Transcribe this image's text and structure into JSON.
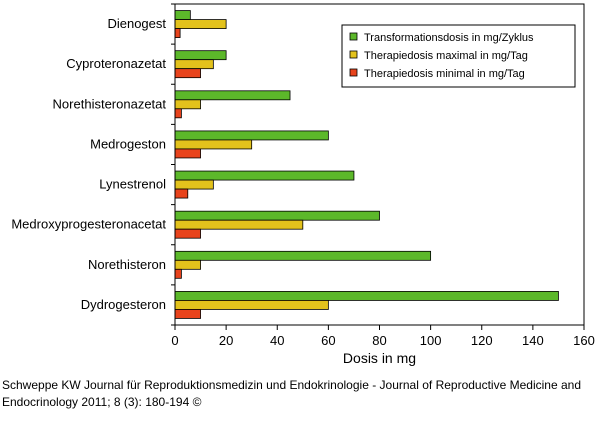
{
  "chart_data": {
    "type": "bar",
    "orientation": "horizontal",
    "categories": [
      "Dienogest",
      "Cyproteronazetat",
      "Norethisteronazetat",
      "Medrogeston",
      "Lynestrenol",
      "Medroxyprogesteronacetat",
      "Norethisteron",
      "Dydrogesteron"
    ],
    "series": [
      {
        "name": "Transformationsdosis in mg/Zyklus",
        "values": [
          6,
          20,
          45,
          60,
          70,
          80,
          100,
          150
        ]
      },
      {
        "name": "Therapiedosis maximal in mg/Tag",
        "values": [
          20,
          15,
          10,
          30,
          15,
          50,
          10,
          60
        ]
      },
      {
        "name": "Therapiedosis minimal in mg/Tag",
        "values": [
          2,
          10,
          2.5,
          10,
          5,
          10,
          2.5,
          10
        ]
      }
    ],
    "xlabel": "Dosis in mg",
    "ylabel": "",
    "xlim": [
      0,
      160
    ],
    "xticks": [
      0,
      20,
      40,
      60,
      80,
      100,
      120,
      140,
      160
    ],
    "legend": "top-right",
    "colors": [
      "#5cb82a",
      "#e3c21c",
      "#e8431c"
    ],
    "grid": false
  },
  "caption": "Schweppe KW Journal für Reproduktionsmedizin und Endokrinologie - Journal of Reproductive Medicine and Endocrinology 2011; 8 (3): 180-194 ©"
}
